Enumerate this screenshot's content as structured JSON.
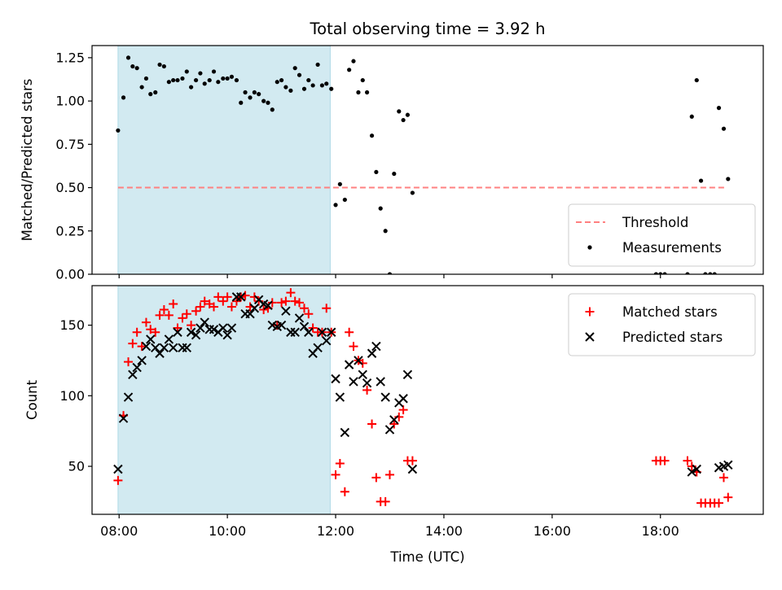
{
  "chart_data": {
    "title": "Total observing time = 3.92 h",
    "xlabel": "Time (UTC)",
    "x_unit": "hours",
    "xlim": [
      7.5,
      19.9
    ],
    "x_ticks": [
      {
        "value": 8,
        "label": "08:00"
      },
      {
        "value": 10,
        "label": "10:00"
      },
      {
        "value": 12,
        "label": "12:00"
      },
      {
        "value": 14,
        "label": "14:00"
      },
      {
        "value": 16,
        "label": "16:00"
      },
      {
        "value": 18,
        "label": "18:00"
      }
    ],
    "shaded_span": {
      "x_start": 7.98,
      "x_end": 11.9,
      "color": "#add8e6"
    },
    "panels": [
      {
        "type": "scatter",
        "ylabel": "Matched/Predicted stars",
        "ylim": [
          0,
          1.32
        ],
        "y_ticks": [
          "0.00",
          "0.25",
          "0.50",
          "0.75",
          "1.00",
          "1.25"
        ],
        "y_tick_values": [
          0,
          0.25,
          0.5,
          0.75,
          1.0,
          1.25
        ],
        "legend_position": "lower-right",
        "threshold": {
          "name": "Threshold",
          "value": 0.5,
          "x_range": [
            7.98,
            19.2
          ],
          "color": "#ff8080"
        },
        "series": [
          {
            "name": "Measurements",
            "color": "#000000",
            "marker": "dot",
            "x": [
              7.98,
              8.08,
              8.17,
              8.25,
              8.33,
              8.42,
              8.5,
              8.58,
              8.67,
              8.75,
              8.83,
              8.92,
              9.0,
              9.08,
              9.17,
              9.25,
              9.33,
              9.42,
              9.5,
              9.58,
              9.67,
              9.75,
              9.83,
              9.92,
              10.0,
              10.08,
              10.17,
              10.25,
              10.33,
              10.42,
              10.5,
              10.58,
              10.67,
              10.75,
              10.83,
              10.92,
              11.0,
              11.08,
              11.17,
              11.25,
              11.33,
              11.42,
              11.5,
              11.58,
              11.67,
              11.75,
              11.83,
              11.92,
              12.0,
              12.08,
              12.17,
              12.25,
              12.33,
              12.42,
              12.5,
              12.58,
              12.67,
              12.75,
              12.83,
              12.92,
              13.0,
              13.08,
              13.17,
              13.25,
              13.33,
              13.42,
              17.92,
              18.0,
              18.08,
              18.5,
              18.58,
              18.67,
              18.75,
              18.83,
              18.92,
              19.0,
              19.08,
              19.17,
              19.25
            ],
            "y": [
              0.83,
              1.02,
              1.25,
              1.2,
              1.19,
              1.08,
              1.13,
              1.04,
              1.05,
              1.21,
              1.2,
              1.11,
              1.12,
              1.12,
              1.13,
              1.17,
              1.08,
              1.12,
              1.16,
              1.1,
              1.12,
              1.17,
              1.11,
              1.13,
              1.13,
              1.14,
              1.12,
              0.99,
              1.05,
              1.02,
              1.05,
              1.04,
              1.0,
              0.99,
              0.95,
              1.11,
              1.12,
              1.08,
              1.06,
              1.19,
              1.15,
              1.07,
              1.12,
              1.09,
              1.21,
              1.09,
              1.1,
              1.07,
              0.4,
              0.52,
              0.43,
              1.18,
              1.23,
              1.05,
              1.12,
              1.05,
              0.8,
              0.59,
              0.38,
              0.25,
              0.0,
              0.58,
              0.94,
              0.89,
              0.92,
              0.47,
              0.0,
              0.0,
              0.0,
              0.0,
              0.91,
              1.12,
              0.54,
              0.0,
              0.0,
              0.0,
              0.96,
              0.84,
              0.55
            ]
          }
        ]
      },
      {
        "type": "scatter",
        "ylabel": "Count",
        "ylim": [
          16,
          178
        ],
        "y_ticks": [
          "50",
          "100",
          "150"
        ],
        "y_tick_values": [
          50,
          100,
          150
        ],
        "legend_position": "upper-right",
        "series": [
          {
            "name": "Matched stars",
            "color": "#ff0000",
            "marker": "plus",
            "x": [
              7.98,
              8.08,
              8.17,
              8.25,
              8.33,
              8.42,
              8.5,
              8.58,
              8.67,
              8.75,
              8.83,
              8.92,
              9.0,
              9.08,
              9.17,
              9.25,
              9.33,
              9.42,
              9.5,
              9.58,
              9.67,
              9.75,
              9.83,
              9.92,
              10.0,
              10.08,
              10.17,
              10.25,
              10.33,
              10.42,
              10.5,
              10.58,
              10.67,
              10.75,
              10.83,
              10.92,
              11.0,
              11.08,
              11.17,
              11.25,
              11.33,
              11.42,
              11.5,
              11.58,
              11.67,
              11.75,
              11.83,
              11.92,
              12.0,
              12.08,
              12.17,
              12.25,
              12.33,
              12.42,
              12.5,
              12.58,
              12.67,
              12.75,
              12.83,
              12.92,
              13.0,
              13.08,
              13.17,
              13.25,
              13.33,
              13.42,
              17.92,
              18.0,
              18.08,
              18.5,
              18.58,
              18.67,
              18.75,
              18.83,
              18.92,
              19.0,
              19.08,
              19.17,
              19.25
            ],
            "y": [
              40,
              86,
              124,
              137,
              145,
              135,
              152,
              147,
              145,
              157,
              161,
              157,
              165,
              148,
              155,
              158,
              150,
              160,
              163,
              167,
              165,
              163,
              170,
              167,
              170,
              163,
              167,
              170,
              171,
              163,
              170,
              167,
              161,
              162,
              166,
              150,
              166,
              167,
              173,
              167,
              166,
              162,
              158,
              148,
              145,
              145,
              162,
              145,
              44,
              52,
              32,
              145,
              135,
              125,
              123,
              104,
              80,
              42,
              25,
              25,
              44,
              80,
              85,
              90,
              54,
              54,
              54,
              54,
              54,
              54,
              50,
              46,
              24,
              24,
              24,
              24,
              24,
              42,
              28
            ],
            "y_note": ""
          },
          {
            "name": "Predicted stars",
            "color": "#000000",
            "marker": "x",
            "x": [
              7.98,
              8.08,
              8.17,
              8.25,
              8.33,
              8.42,
              8.5,
              8.58,
              8.67,
              8.75,
              8.83,
              8.92,
              9.0,
              9.08,
              9.17,
              9.25,
              9.33,
              9.42,
              9.5,
              9.58,
              9.67,
              9.75,
              9.83,
              9.92,
              10.0,
              10.08,
              10.17,
              10.25,
              10.33,
              10.42,
              10.5,
              10.58,
              10.67,
              10.75,
              10.83,
              10.92,
              11.0,
              11.08,
              11.17,
              11.25,
              11.33,
              11.42,
              11.5,
              11.58,
              11.67,
              11.75,
              11.83,
              11.92,
              12.0,
              12.08,
              12.17,
              12.25,
              12.33,
              12.42,
              12.5,
              12.58,
              12.67,
              12.75,
              12.83,
              12.92,
              13.0,
              13.08,
              13.17,
              13.25,
              13.33,
              13.42,
              18.58,
              18.67,
              19.08,
              19.17,
              19.25
            ],
            "y": [
              48,
              84,
              99,
              115,
              120,
              125,
              135,
              140,
              134,
              130,
              134,
              140,
              134,
              145,
              134,
              134,
              145,
              143,
              148,
              152,
              147,
              147,
              145,
              148,
              143,
              148,
              170,
              170,
              158,
              158,
              162,
              168,
              165,
              164,
              150,
              149,
              150,
              160,
              145,
              145,
              155,
              149,
              145,
              130,
              134,
              145,
              139,
              145,
              112,
              99,
              74,
              122,
              110,
              125,
              115,
              109,
              130,
              135,
              110,
              99,
              76,
              83,
              95,
              98,
              115,
              48,
              46,
              48,
              49,
              50,
              51
            ]
          }
        ]
      }
    ]
  }
}
